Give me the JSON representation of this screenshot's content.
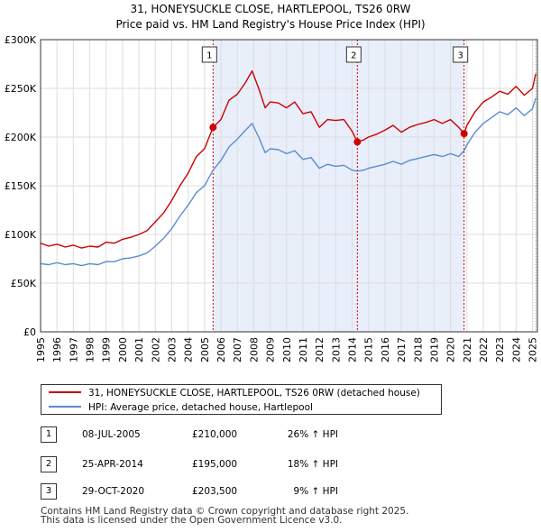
{
  "chart_data": {
    "type": "line",
    "title_line1": "31, HONEYSUCKLE CLOSE, HARTLEPOOL, TS26 0RW",
    "title_line2": "Price paid vs. HM Land Registry's House Price Index (HPI)",
    "xlim": [
      1995,
      2025.3
    ],
    "ylim": [
      0,
      300000
    ],
    "y_ticks": [
      {
        "value": 0,
        "label": "£0"
      },
      {
        "value": 50000,
        "label": "£50K"
      },
      {
        "value": 100000,
        "label": "£100K"
      },
      {
        "value": 150000,
        "label": "£150K"
      },
      {
        "value": 200000,
        "label": "£200K"
      },
      {
        "value": 250000,
        "label": "£250K"
      },
      {
        "value": 300000,
        "label": "£300K"
      }
    ],
    "x_ticks": [
      "1995",
      "1996",
      "1997",
      "1998",
      "1999",
      "2000",
      "2001",
      "2002",
      "2003",
      "2004",
      "2005",
      "2006",
      "2007",
      "2008",
      "2009",
      "2010",
      "2011",
      "2012",
      "2013",
      "2014",
      "2015",
      "2016",
      "2017",
      "2018",
      "2019",
      "2020",
      "2021",
      "2022",
      "2023",
      "2024",
      "2025"
    ],
    "colors": {
      "property": "#cc0000",
      "hpi": "#5b8bd0",
      "shade": "#e8eefa",
      "grid": "#dddddd",
      "marker_line": "#cc0000"
    },
    "series": [
      {
        "name": "31, HONEYSUCKLE CLOSE, HARTLEPOOL, TS26 0RW (detached house)",
        "key": "property",
        "x": [
          1995.0,
          1995.5,
          1996.0,
          1996.5,
          1997.0,
          1997.5,
          1998.0,
          1998.5,
          1999.0,
          1999.5,
          2000.0,
          2000.5,
          2001.0,
          2001.5,
          2002.0,
          2002.5,
          2003.0,
          2003.5,
          2004.0,
          2004.5,
          2005.0,
          2005.52,
          2006.0,
          2006.5,
          2007.0,
          2007.5,
          2007.9,
          2008.3,
          2008.7,
          2009.0,
          2009.5,
          2010.0,
          2010.5,
          2011.0,
          2011.5,
          2012.0,
          2012.5,
          2013.0,
          2013.5,
          2014.0,
          2014.32,
          2014.7,
          2015.0,
          2015.5,
          2016.0,
          2016.5,
          2017.0,
          2017.5,
          2018.0,
          2018.5,
          2019.0,
          2019.5,
          2020.0,
          2020.5,
          2020.83,
          2021.0,
          2021.5,
          2022.0,
          2022.5,
          2023.0,
          2023.5,
          2024.0,
          2024.5,
          2025.0,
          2025.2
        ],
        "values": [
          91000,
          88000,
          90000,
          87000,
          89000,
          86000,
          88000,
          87000,
          92000,
          91000,
          95000,
          97000,
          100000,
          104000,
          113000,
          122000,
          135000,
          150000,
          163000,
          180000,
          188000,
          210000,
          218000,
          238000,
          244000,
          256000,
          268000,
          250000,
          230000,
          236000,
          235000,
          230000,
          236000,
          224000,
          226000,
          210000,
          218000,
          217000,
          218000,
          206000,
          195000,
          197000,
          200000,
          203000,
          207000,
          212000,
          205000,
          210000,
          213000,
          215000,
          218000,
          214000,
          218000,
          210000,
          203500,
          212000,
          226000,
          236000,
          241000,
          247000,
          244000,
          252000,
          243000,
          250000,
          265000
        ]
      },
      {
        "name": "HPI: Average price, detached house, Hartlepool",
        "key": "hpi",
        "x": [
          1995.0,
          1995.5,
          1996.0,
          1996.5,
          1997.0,
          1997.5,
          1998.0,
          1998.5,
          1999.0,
          1999.5,
          2000.0,
          2000.5,
          2001.0,
          2001.5,
          2002.0,
          2002.5,
          2003.0,
          2003.5,
          2004.0,
          2004.5,
          2005.0,
          2005.52,
          2006.0,
          2006.5,
          2007.0,
          2007.5,
          2007.9,
          2008.3,
          2008.7,
          2009.0,
          2009.5,
          2010.0,
          2010.5,
          2011.0,
          2011.5,
          2012.0,
          2012.5,
          2013.0,
          2013.5,
          2014.0,
          2014.32,
          2014.7,
          2015.0,
          2015.5,
          2016.0,
          2016.5,
          2017.0,
          2017.5,
          2018.0,
          2018.5,
          2019.0,
          2019.5,
          2020.0,
          2020.5,
          2020.83,
          2021.0,
          2021.5,
          2022.0,
          2022.5,
          2023.0,
          2023.5,
          2024.0,
          2024.5,
          2025.0,
          2025.2
        ],
        "values": [
          70000,
          69000,
          71000,
          69000,
          70000,
          68000,
          70000,
          69000,
          72000,
          72000,
          75000,
          76000,
          78000,
          81000,
          88000,
          96000,
          106000,
          119000,
          130000,
          143000,
          150000,
          166000,
          176000,
          190000,
          198000,
          207000,
          214000,
          200000,
          184000,
          188000,
          187000,
          183000,
          186000,
          177000,
          179000,
          168000,
          172000,
          170000,
          171000,
          166000,
          165000,
          166000,
          168000,
          170000,
          172000,
          175000,
          172000,
          176000,
          178000,
          180000,
          182000,
          180000,
          183000,
          180000,
          186000,
          192000,
          205000,
          214000,
          220000,
          226000,
          223000,
          230000,
          222000,
          229000,
          240000
        ]
      }
    ],
    "sales": [
      {
        "num": "1",
        "x": 2005.52,
        "price": 210000,
        "date": "08-JUL-2005",
        "price_label": "£210,000",
        "hpi_label": "26% ↑ HPI"
      },
      {
        "num": "2",
        "x": 2014.32,
        "price": 195000,
        "date": "25-APR-2014",
        "price_label": "£195,000",
        "hpi_label": "18% ↑ HPI"
      },
      {
        "num": "3",
        "x": 2020.83,
        "price": 203500,
        "date": "29-OCT-2020",
        "price_label": "£203,500",
        "hpi_label": "9% ↑ HPI"
      }
    ],
    "legend": [
      {
        "label": "31, HONEYSUCKLE CLOSE, HARTLEPOOL, TS26 0RW (detached house)"
      },
      {
        "label": "HPI: Average price, detached house, Hartlepool"
      }
    ],
    "footer_line1": "Contains HM Land Registry data © Crown copyright and database right 2025.",
    "footer_line2": "This data is licensed under the Open Government Licence v3.0."
  }
}
